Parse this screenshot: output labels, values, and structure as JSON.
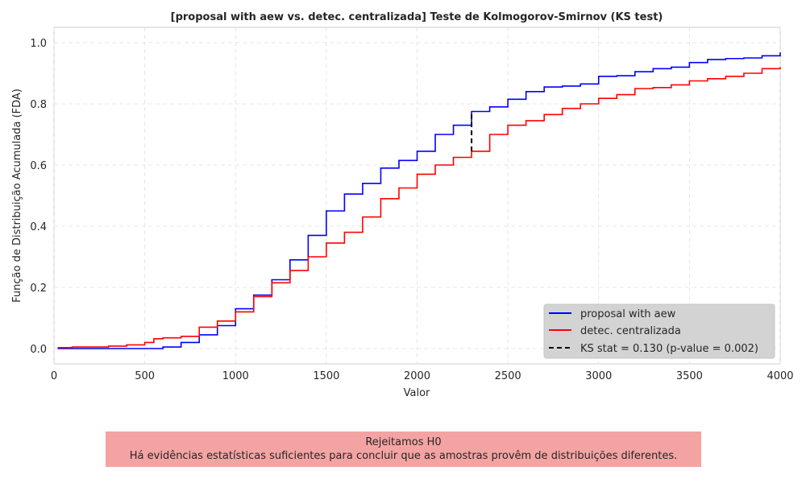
{
  "colors": {
    "proposal": "#0000ff",
    "centralizada": "#ff0000",
    "ks_line": "#000000",
    "legend_bg": "#d3d3d3",
    "conclusion_bg": "#f4a3a3",
    "grid": "#e0e0e0"
  },
  "chart_data": {
    "type": "line",
    "title": "[proposal with aew vs. detec. centralizada] Teste de Kolmogorov-Smirnov (KS test)",
    "xlabel": "Valor",
    "ylabel": "Função de Distribuição Acumulada (FDA)",
    "xlim": [
      0,
      4000
    ],
    "ylim": [
      -0.05,
      1.05
    ],
    "x_ticks": [
      0,
      500,
      1000,
      1500,
      2000,
      2500,
      3000,
      3500,
      4000
    ],
    "y_ticks": [
      0.0,
      0.2,
      0.4,
      0.6,
      0.8,
      1.0
    ],
    "x_tick_labels": [
      "0",
      "500",
      "1000",
      "1500",
      "2000",
      "2500",
      "3000",
      "3500",
      "4000"
    ],
    "y_tick_labels": [
      "0.0",
      "0.2",
      "0.4",
      "0.6",
      "0.8",
      "1.0"
    ],
    "grid": true,
    "grid_style": "dashed",
    "legend_position": "lower-right",
    "series": [
      {
        "name": "proposal with aew",
        "color": "#0000ff",
        "style": "solid",
        "x": [
          20,
          550,
          600,
          700,
          800,
          900,
          1000,
          1100,
          1200,
          1300,
          1400,
          1500,
          1600,
          1700,
          1800,
          1900,
          2000,
          2100,
          2200,
          2300,
          2400,
          2500,
          2600,
          2700,
          2800,
          2900,
          3000,
          3100,
          3200,
          3300,
          3400,
          3500,
          3600,
          3700,
          3800,
          3900,
          4000
        ],
        "y": [
          0.0,
          0.0,
          0.005,
          0.02,
          0.045,
          0.075,
          0.13,
          0.175,
          0.225,
          0.29,
          0.37,
          0.45,
          0.505,
          0.54,
          0.59,
          0.615,
          0.645,
          0.7,
          0.73,
          0.775,
          0.79,
          0.815,
          0.84,
          0.855,
          0.858,
          0.865,
          0.89,
          0.892,
          0.905,
          0.915,
          0.92,
          0.935,
          0.945,
          0.948,
          0.95,
          0.957,
          0.968
        ]
      },
      {
        "name": "detec. centralizada",
        "color": "#ff0000",
        "style": "solid",
        "x": [
          20,
          100,
          200,
          300,
          400,
          500,
          550,
          600,
          700,
          800,
          900,
          1000,
          1100,
          1200,
          1300,
          1400,
          1500,
          1600,
          1700,
          1800,
          1900,
          2000,
          2100,
          2200,
          2300,
          2400,
          2500,
          2600,
          2700,
          2800,
          2900,
          3000,
          3100,
          3200,
          3300,
          3400,
          3500,
          3600,
          3700,
          3800,
          3900,
          4000
        ],
        "y": [
          0.003,
          0.005,
          0.005,
          0.008,
          0.012,
          0.02,
          0.032,
          0.035,
          0.04,
          0.07,
          0.09,
          0.12,
          0.17,
          0.215,
          0.255,
          0.3,
          0.345,
          0.38,
          0.43,
          0.49,
          0.525,
          0.57,
          0.6,
          0.625,
          0.645,
          0.7,
          0.73,
          0.745,
          0.765,
          0.785,
          0.8,
          0.818,
          0.83,
          0.85,
          0.853,
          0.862,
          0.875,
          0.882,
          0.89,
          0.9,
          0.915,
          0.92
        ]
      }
    ],
    "ks_segment": {
      "label": "KS stat = 0.130 (p-value = 0.002)",
      "x": 2300,
      "y_low": 0.645,
      "y_high": 0.775,
      "style": "dashed"
    }
  },
  "conclusion": {
    "line1": "Rejeitamos H0",
    "line2": "Há evidências estatísticas suficientes para concluir que as amostras provêm de distribuições diferentes."
  }
}
